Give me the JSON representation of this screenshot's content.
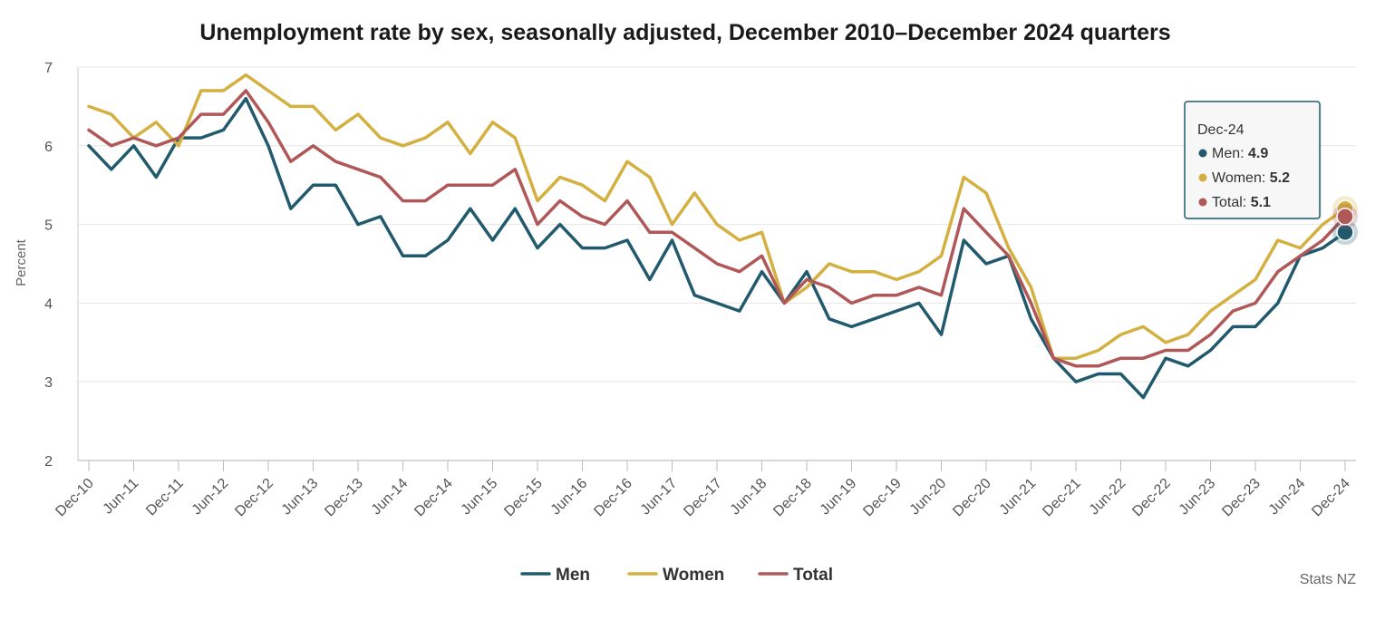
{
  "chart_data": {
    "type": "line",
    "title": "Unemployment rate by sex, seasonally adjusted, December 2010–December 2024 quarters",
    "xlabel": "",
    "ylabel": "Percent",
    "ylim": [
      2,
      7
    ],
    "yticks": [
      "2",
      "3",
      "4",
      "5",
      "6",
      "7"
    ],
    "grid": true,
    "legend_position": "bottom-center",
    "categories": [
      "Dec-10",
      "Mar-11",
      "Jun-11",
      "Sep-11",
      "Dec-11",
      "Mar-12",
      "Jun-12",
      "Sep-12",
      "Dec-12",
      "Mar-13",
      "Jun-13",
      "Sep-13",
      "Dec-13",
      "Mar-14",
      "Jun-14",
      "Sep-14",
      "Dec-14",
      "Mar-15",
      "Jun-15",
      "Sep-15",
      "Dec-15",
      "Mar-16",
      "Jun-16",
      "Sep-16",
      "Dec-16",
      "Mar-17",
      "Jun-17",
      "Sep-17",
      "Dec-17",
      "Mar-18",
      "Jun-18",
      "Sep-18",
      "Dec-18",
      "Mar-19",
      "Jun-19",
      "Sep-19",
      "Dec-19",
      "Mar-20",
      "Jun-20",
      "Sep-20",
      "Dec-20",
      "Mar-21",
      "Jun-21",
      "Sep-21",
      "Dec-21",
      "Mar-22",
      "Jun-22",
      "Sep-22",
      "Dec-22",
      "Mar-23",
      "Jun-23",
      "Sep-23",
      "Dec-23",
      "Mar-24",
      "Jun-24",
      "Sep-24",
      "Dec-24"
    ],
    "xtick_labels": [
      "Dec-10",
      "Jun-11",
      "Dec-11",
      "Jun-12",
      "Dec-12",
      "Jun-13",
      "Dec-13",
      "Jun-14",
      "Dec-14",
      "Jun-15",
      "Dec-15",
      "Jun-16",
      "Dec-16",
      "Jun-17",
      "Dec-17",
      "Jun-18",
      "Dec-18",
      "Jun-19",
      "Dec-19",
      "Jun-20",
      "Dec-20",
      "Jun-21",
      "Dec-21",
      "Jun-22",
      "Dec-22",
      "Jun-23",
      "Dec-23",
      "Jun-24",
      "Dec-24"
    ],
    "series": [
      {
        "name": "Men",
        "color": "#215a6d",
        "values": [
          6.0,
          5.7,
          6.0,
          5.6,
          6.1,
          6.1,
          6.2,
          6.6,
          6.0,
          5.2,
          5.5,
          5.5,
          5.0,
          5.1,
          4.6,
          4.6,
          4.8,
          5.2,
          4.8,
          5.2,
          4.7,
          5.0,
          4.7,
          4.7,
          4.8,
          4.3,
          4.8,
          4.1,
          4.0,
          3.9,
          4.4,
          4.0,
          4.4,
          3.8,
          3.7,
          3.8,
          3.9,
          4.0,
          3.6,
          4.8,
          4.5,
          4.6,
          3.8,
          3.3,
          3.0,
          3.1,
          3.1,
          2.8,
          3.3,
          3.2,
          3.4,
          3.7,
          3.7,
          4.0,
          4.6,
          4.7,
          4.9
        ]
      },
      {
        "name": "Women",
        "color": "#d4b041",
        "values": [
          6.5,
          6.4,
          6.1,
          6.3,
          6.0,
          6.7,
          6.7,
          6.9,
          6.7,
          6.5,
          6.5,
          6.2,
          6.4,
          6.1,
          6.0,
          6.1,
          6.3,
          5.9,
          6.3,
          6.1,
          5.3,
          5.6,
          5.5,
          5.3,
          5.8,
          5.6,
          5.0,
          5.4,
          5.0,
          4.8,
          4.9,
          4.0,
          4.2,
          4.5,
          4.4,
          4.4,
          4.3,
          4.4,
          4.6,
          5.6,
          5.4,
          4.7,
          4.2,
          3.3,
          3.3,
          3.4,
          3.6,
          3.7,
          3.5,
          3.6,
          3.9,
          4.1,
          4.3,
          4.8,
          4.7,
          5.0,
          5.2
        ]
      },
      {
        "name": "Total",
        "color": "#b05758",
        "values": [
          6.2,
          6.0,
          6.1,
          6.0,
          6.1,
          6.4,
          6.4,
          6.7,
          6.3,
          5.8,
          6.0,
          5.8,
          5.7,
          5.6,
          5.3,
          5.3,
          5.5,
          5.5,
          5.5,
          5.7,
          5.0,
          5.3,
          5.1,
          5.0,
          5.3,
          4.9,
          4.9,
          4.7,
          4.5,
          4.4,
          4.6,
          4.0,
          4.3,
          4.2,
          4.0,
          4.1,
          4.1,
          4.2,
          4.1,
          5.2,
          4.9,
          4.6,
          4.0,
          3.3,
          3.2,
          3.2,
          3.3,
          3.3,
          3.4,
          3.4,
          3.6,
          3.9,
          4.0,
          4.4,
          4.6,
          4.8,
          5.1
        ]
      }
    ],
    "tooltip": {
      "category": "Dec-24",
      "entries": [
        {
          "name": "Men",
          "value": "4.9",
          "color": "#215a6d"
        },
        {
          "name": "Women",
          "value": "5.2",
          "color": "#d4b041"
        },
        {
          "name": "Total",
          "value": "5.1",
          "color": "#b05758"
        }
      ]
    },
    "credit": "Stats NZ"
  }
}
